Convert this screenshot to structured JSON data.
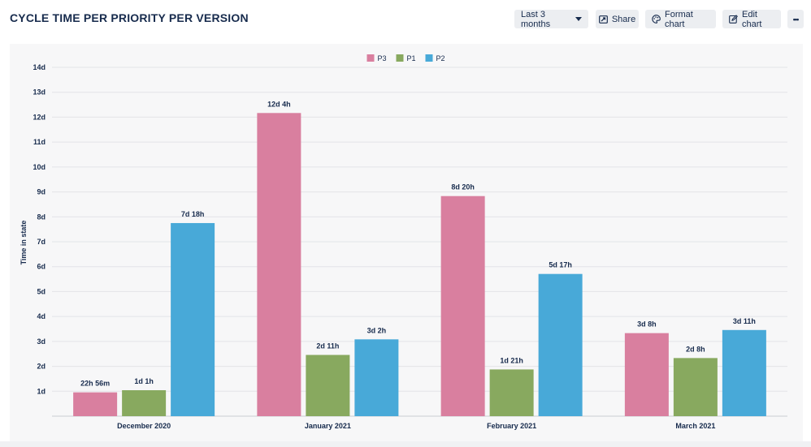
{
  "header": {
    "title": "CYCLE TIME PER PRIORITY PER VERSION",
    "range_label": "Last 3 months",
    "share_label": "Share",
    "format_label": "Format chart",
    "edit_label": "Edit chart",
    "more_label": "•••"
  },
  "colors": {
    "P3": "#d97f9f",
    "P1": "#88a95f",
    "P2": "#48a9d8",
    "grid": "#e3e4e7",
    "axis_text": "#172b4d"
  },
  "chart_data": {
    "type": "bar",
    "title": "",
    "xlabel": "",
    "ylabel": "Time in state",
    "ylim": [
      0,
      14
    ],
    "y_unit": "days",
    "y_ticks": [
      "1d",
      "2d",
      "3d",
      "4d",
      "5d",
      "6d",
      "7d",
      "8d",
      "9d",
      "10d",
      "11d",
      "12d",
      "13d",
      "14d"
    ],
    "categories": [
      "December 2020",
      "January 2021",
      "February 2021",
      "March 2021"
    ],
    "legend": [
      "P3",
      "P1",
      "P2"
    ],
    "legend_position": "top-center",
    "series": [
      {
        "name": "P3",
        "values": [
          0.956,
          12.167,
          8.833,
          3.333
        ],
        "labels": [
          "22h 56m",
          "12d 4h",
          "8d 20h",
          "3d 8h"
        ]
      },
      {
        "name": "P1",
        "values": [
          1.042,
          2.458,
          1.875,
          2.333
        ],
        "labels": [
          "1d 1h",
          "2d 11h",
          "1d 21h",
          "2d 8h"
        ]
      },
      {
        "name": "P2",
        "values": [
          7.75,
          3.083,
          5.708,
          3.458
        ],
        "labels": [
          "7d 18h",
          "3d 2h",
          "5d 17h",
          "3d 11h"
        ]
      }
    ]
  }
}
